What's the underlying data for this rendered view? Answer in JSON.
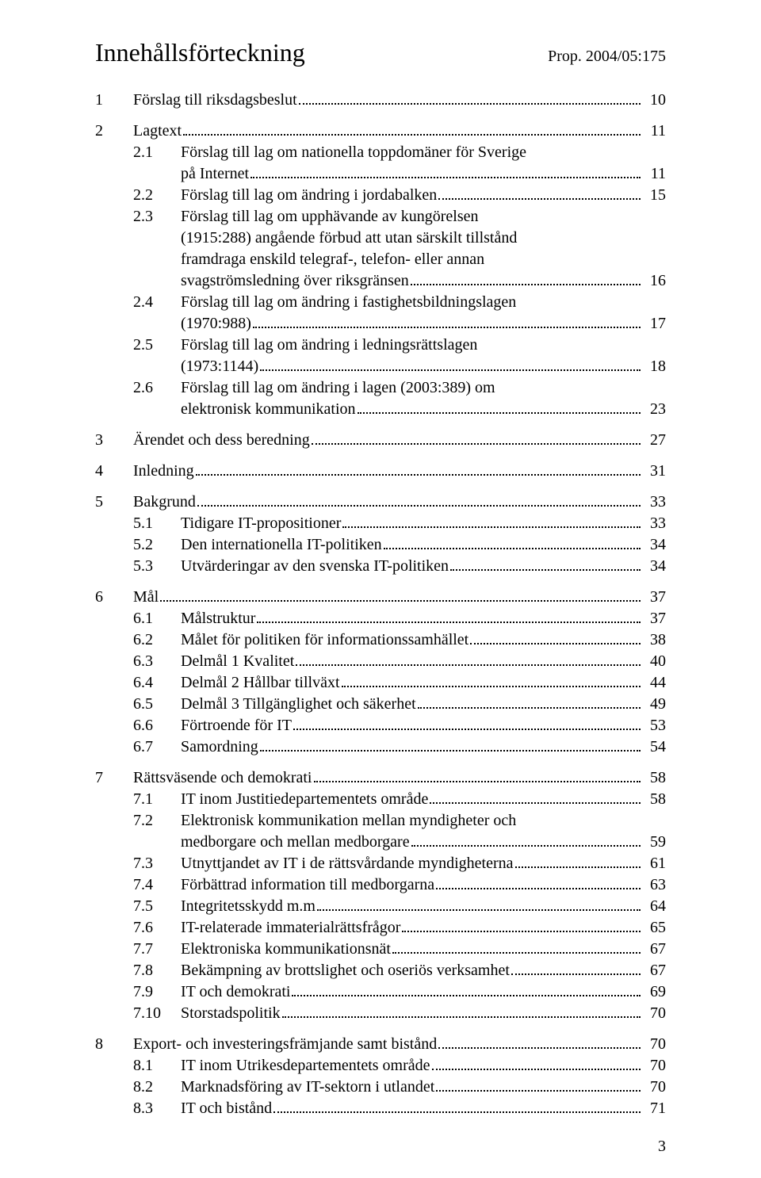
{
  "header": {
    "title": "Innehållsförteckning",
    "prop": "Prop. 2004/05:175"
  },
  "footer_page": "3",
  "entries": [
    {
      "level": 1,
      "num": "1",
      "lines": [
        "Förslag till riksdagsbeslut"
      ],
      "page": "10"
    },
    {
      "level": 1,
      "num": "2",
      "lines": [
        "Lagtext"
      ],
      "page": "11"
    },
    {
      "level": 2,
      "num": "2.1",
      "lines": [
        "Förslag till lag om nationella toppdomäner för Sverige",
        "på Internet"
      ],
      "page": "11"
    },
    {
      "level": 2,
      "num": "2.2",
      "lines": [
        "Förslag till lag om ändring i jordabalken"
      ],
      "page": "15"
    },
    {
      "level": 2,
      "num": "2.3",
      "lines": [
        "Förslag till lag om upphävande av kungörelsen",
        "(1915:288) angående förbud att utan särskilt tillstånd",
        "framdraga enskild telegraf-, telefon- eller annan",
        "svagströmsledning över riksgränsen"
      ],
      "page": "16"
    },
    {
      "level": 2,
      "num": "2.4",
      "lines": [
        "Förslag till lag om ändring i fastighetsbildningslagen",
        "(1970:988)"
      ],
      "page": "17"
    },
    {
      "level": 2,
      "num": "2.5",
      "lines": [
        "Förslag till lag om ändring i ledningsrättslagen",
        "(1973:1144)"
      ],
      "page": "18"
    },
    {
      "level": 2,
      "num": "2.6",
      "lines": [
        "Förslag till lag om ändring i lagen (2003:389) om",
        "elektronisk kommunikation"
      ],
      "page": "23"
    },
    {
      "level": 1,
      "num": "3",
      "lines": [
        "Ärendet och dess beredning"
      ],
      "page": "27"
    },
    {
      "level": 1,
      "num": "4",
      "lines": [
        "Inledning"
      ],
      "page": "31"
    },
    {
      "level": 1,
      "num": "5",
      "lines": [
        "Bakgrund"
      ],
      "page": "33"
    },
    {
      "level": 2,
      "num": "5.1",
      "lines": [
        "Tidigare IT-propositioner"
      ],
      "page": "33"
    },
    {
      "level": 2,
      "num": "5.2",
      "lines": [
        "Den internationella IT-politiken"
      ],
      "page": "34"
    },
    {
      "level": 2,
      "num": "5.3",
      "lines": [
        "Utvärderingar av den svenska IT-politiken"
      ],
      "page": "34"
    },
    {
      "level": 1,
      "num": "6",
      "lines": [
        "Mål"
      ],
      "page": "37"
    },
    {
      "level": 2,
      "num": "6.1",
      "lines": [
        "Målstruktur"
      ],
      "page": "37"
    },
    {
      "level": 2,
      "num": "6.2",
      "lines": [
        "Målet för politiken för informationssamhället"
      ],
      "page": "38"
    },
    {
      "level": 2,
      "num": "6.3",
      "lines": [
        "Delmål 1 Kvalitet"
      ],
      "page": "40"
    },
    {
      "level": 2,
      "num": "6.4",
      "lines": [
        "Delmål 2 Hållbar tillväxt"
      ],
      "page": "44"
    },
    {
      "level": 2,
      "num": "6.5",
      "lines": [
        "Delmål 3 Tillgänglighet och säkerhet"
      ],
      "page": "49"
    },
    {
      "level": 2,
      "num": "6.6",
      "lines": [
        "Förtroende för IT"
      ],
      "page": "53"
    },
    {
      "level": 2,
      "num": "6.7",
      "lines": [
        "Samordning"
      ],
      "page": "54"
    },
    {
      "level": 1,
      "num": "7",
      "lines": [
        "Rättsväsende och demokrati"
      ],
      "page": "58"
    },
    {
      "level": 2,
      "num": "7.1",
      "lines": [
        "IT inom Justitiedepartementets område"
      ],
      "page": "58"
    },
    {
      "level": 2,
      "num": "7.2",
      "lines": [
        "Elektronisk kommunikation mellan myndigheter och",
        "medborgare och mellan medborgare"
      ],
      "page": "59"
    },
    {
      "level": 2,
      "num": "7.3",
      "lines": [
        "Utnyttjandet av IT i de rättsvårdande myndigheterna"
      ],
      "page": "61"
    },
    {
      "level": 2,
      "num": "7.4",
      "lines": [
        "Förbättrad information till medborgarna"
      ],
      "page": "63"
    },
    {
      "level": 2,
      "num": "7.5",
      "lines": [
        "Integritetsskydd m.m"
      ],
      "page": "64"
    },
    {
      "level": 2,
      "num": "7.6",
      "lines": [
        "IT-relaterade immaterialrättsfrågor"
      ],
      "page": "65"
    },
    {
      "level": 2,
      "num": "7.7",
      "lines": [
        "Elektroniska kommunikationsnät"
      ],
      "page": "67"
    },
    {
      "level": 2,
      "num": "7.8",
      "lines": [
        "Bekämpning av brottslighet och oseriös verksamhet"
      ],
      "page": "67"
    },
    {
      "level": 2,
      "num": "7.9",
      "lines": [
        "IT och demokrati"
      ],
      "page": "69"
    },
    {
      "level": 2,
      "num": "7.10",
      "lines": [
        "Storstadspolitik"
      ],
      "page": "70"
    },
    {
      "level": 1,
      "num": "8",
      "lines": [
        "Export- och investeringsfrämjande samt bistånd"
      ],
      "page": "70"
    },
    {
      "level": 2,
      "num": "8.1",
      "lines": [
        "IT inom Utrikesdepartementets område"
      ],
      "page": "70"
    },
    {
      "level": 2,
      "num": "8.2",
      "lines": [
        "Marknadsföring av IT-sektorn i utlandet"
      ],
      "page": "70"
    },
    {
      "level": 2,
      "num": "8.3",
      "lines": [
        "IT och bistånd"
      ],
      "page": "71"
    }
  ]
}
